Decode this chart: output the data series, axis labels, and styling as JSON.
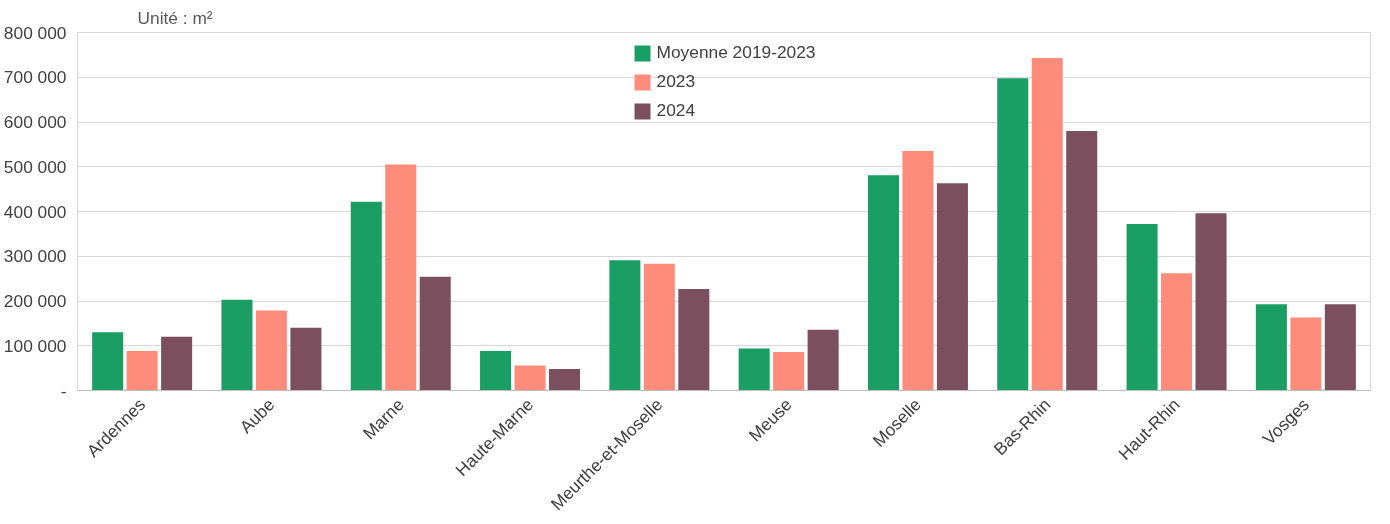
{
  "chart_data": {
    "type": "bar",
    "ylabel": "Unité : m²",
    "categories": [
      "Ardennes",
      "Aube",
      "Marne",
      "Haute-Marne",
      "Meurthe-et-Moselle",
      "Meuse",
      "Moselle",
      "Bas-Rhin",
      "Haut-Rhin",
      "Vosges"
    ],
    "series": [
      {
        "name": "Moyenne 2019-2023",
        "color": "#1a9e64",
        "values": [
          130000,
          203000,
          422000,
          88000,
          291000,
          94000,
          481000,
          698000,
          372000,
          193000
        ]
      },
      {
        "name": "2023",
        "color": "#ff8c7a",
        "values": [
          88000,
          179000,
          505000,
          56000,
          283000,
          86000,
          535000,
          743000,
          262000,
          163000
        ]
      },
      {
        "name": "2024",
        "color": "#7b4f5e",
        "values": [
          120000,
          140000,
          254000,
          48000,
          227000,
          136000,
          463000,
          580000,
          396000,
          193000
        ]
      }
    ],
    "ylim": [
      0,
      800000
    ],
    "yticks": [
      {
        "value": 0,
        "label": "-"
      },
      {
        "value": 100000,
        "label": "100 000"
      },
      {
        "value": 200000,
        "label": "200 000"
      },
      {
        "value": 300000,
        "label": "300 000"
      },
      {
        "value": 400000,
        "label": "400 000"
      },
      {
        "value": 500000,
        "label": "500 000"
      },
      {
        "value": 600000,
        "label": "600 000"
      },
      {
        "value": 700000,
        "label": "700 000"
      },
      {
        "value": 800000,
        "label": "800 000"
      }
    ],
    "grid": "y",
    "legend": "top"
  }
}
